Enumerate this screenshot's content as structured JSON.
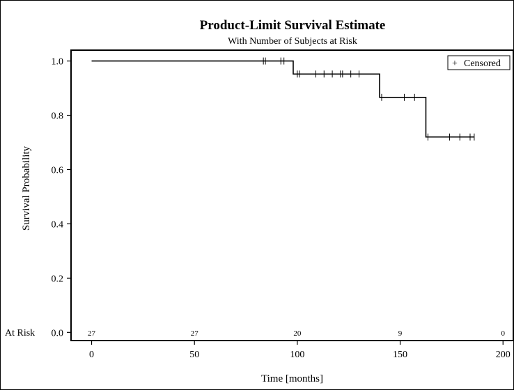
{
  "chart_data": {
    "type": "line",
    "subtype": "kaplan-meier step",
    "title": "Product-Limit Survival Estimate",
    "subtitle": "With Number of Subjects at Risk",
    "xlabel": "Time [months]",
    "ylabel": "Survival Probability",
    "xlim": [
      -10,
      205
    ],
    "ylim": [
      -0.03,
      1.04
    ],
    "x_ticks": [
      "0",
      "50",
      "100",
      "150",
      "200"
    ],
    "y_ticks": [
      "0.0",
      "0.2",
      "0.4",
      "0.6",
      "0.8",
      "1.0"
    ],
    "grid": false,
    "legend": {
      "position": "top-right",
      "entries": [
        {
          "symbol": "+",
          "label": "Censored"
        }
      ]
    },
    "survival_curve": [
      {
        "x": 0,
        "y": 1.0
      },
      {
        "x": 98,
        "y": 1.0
      },
      {
        "x": 98,
        "y": 0.952
      },
      {
        "x": 140,
        "y": 0.952
      },
      {
        "x": 140,
        "y": 0.866
      },
      {
        "x": 162.5,
        "y": 0.866
      },
      {
        "x": 162.5,
        "y": 0.72
      },
      {
        "x": 186,
        "y": 0.72
      }
    ],
    "censored": [
      {
        "x": 83.5,
        "y": 1.0
      },
      {
        "x": 84.5,
        "y": 1.0
      },
      {
        "x": 92,
        "y": 1.0
      },
      {
        "x": 93.5,
        "y": 1.0
      },
      {
        "x": 100,
        "y": 0.952
      },
      {
        "x": 101,
        "y": 0.952
      },
      {
        "x": 109,
        "y": 0.952
      },
      {
        "x": 113,
        "y": 0.952
      },
      {
        "x": 117,
        "y": 0.952
      },
      {
        "x": 121,
        "y": 0.952
      },
      {
        "x": 122,
        "y": 0.952
      },
      {
        "x": 126,
        "y": 0.952
      },
      {
        "x": 130,
        "y": 0.952
      },
      {
        "x": 141,
        "y": 0.866
      },
      {
        "x": 152,
        "y": 0.866
      },
      {
        "x": 157,
        "y": 0.866
      },
      {
        "x": 163.5,
        "y": 0.72
      },
      {
        "x": 174,
        "y": 0.72
      },
      {
        "x": 179,
        "y": 0.72
      },
      {
        "x": 184,
        "y": 0.72
      },
      {
        "x": 186,
        "y": 0.72
      }
    ],
    "at_risk": {
      "label": "At Risk",
      "x": [
        0,
        50,
        100,
        150,
        200
      ],
      "counts": [
        "27",
        "27",
        "20",
        "9",
        "0"
      ]
    }
  }
}
